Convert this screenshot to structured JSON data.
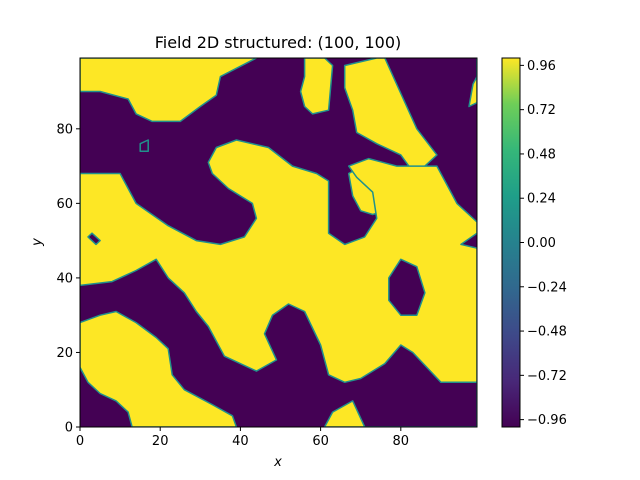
{
  "chart_data": {
    "type": "heatmap",
    "title": "Field 2D structured: (100, 100)",
    "xlabel": "x",
    "ylabel": "y",
    "xlim": [
      0,
      99
    ],
    "ylim": [
      0,
      99
    ],
    "x_ticks": [
      0,
      20,
      40,
      60,
      80
    ],
    "y_ticks": [
      0,
      20,
      40,
      60,
      80
    ],
    "x_tick_labels": [
      "0",
      "20",
      "40",
      "60",
      "80"
    ],
    "y_tick_labels": [
      "0",
      "20",
      "40",
      "60",
      "80"
    ],
    "colormap": "viridis",
    "clim": [
      -1.0,
      1.0
    ],
    "colorbar_ticks": [
      0.96,
      0.72,
      0.48,
      0.24,
      0.0,
      -0.24,
      -0.48,
      -0.72,
      -0.96
    ],
    "colorbar_tick_labels": [
      "0.96",
      "0.72",
      "0.48",
      "0.24",
      "0.00",
      "−0.24",
      "−0.48",
      "−0.72",
      "−0.96"
    ],
    "low_color": "#440154",
    "high_color": "#fde725",
    "edge_color": "#21918c",
    "regions_high_value_polygons": [
      [
        [
          0,
          99
        ],
        [
          44,
          99
        ],
        [
          35,
          94
        ],
        [
          34,
          89
        ],
        [
          30,
          86
        ],
        [
          25,
          82
        ],
        [
          18,
          82
        ],
        [
          14,
          84
        ],
        [
          12,
          88
        ],
        [
          5,
          90
        ],
        [
          0,
          90
        ]
      ],
      [
        [
          56,
          99
        ],
        [
          61,
          99
        ],
        [
          63,
          97
        ],
        [
          62,
          85
        ],
        [
          58,
          84
        ],
        [
          56,
          86
        ],
        [
          55,
          90
        ],
        [
          56,
          94
        ]
      ],
      [
        [
          74,
          99
        ],
        [
          76,
          99
        ],
        [
          84,
          80
        ],
        [
          89,
          73
        ],
        [
          86,
          70
        ],
        [
          78,
          68
        ],
        [
          72,
          71
        ],
        [
          67,
          68
        ],
        [
          68,
          62
        ],
        [
          70,
          58
        ],
        [
          73,
          57
        ],
        [
          76,
          58
        ],
        [
          79,
          61
        ],
        [
          81,
          66
        ],
        [
          82,
          70
        ],
        [
          80,
          73
        ],
        [
          74,
          76
        ],
        [
          69,
          79
        ],
        [
          68,
          85
        ],
        [
          66,
          91
        ],
        [
          66,
          97
        ]
      ],
      [
        [
          99,
          99
        ],
        [
          99,
          87
        ],
        [
          97,
          86
        ],
        [
          98,
          92
        ],
        [
          99,
          94
        ]
      ],
      [
        [
          99,
          99
        ],
        [
          99,
          94
        ],
        [
          99,
          99
        ]
      ],
      [
        [
          39,
          77
        ],
        [
          47,
          75
        ],
        [
          53,
          70
        ],
        [
          59,
          68
        ],
        [
          62,
          66
        ],
        [
          62,
          52
        ],
        [
          66,
          49
        ],
        [
          71,
          51
        ],
        [
          74,
          56
        ],
        [
          73,
          63
        ],
        [
          69,
          67
        ],
        [
          67,
          70
        ],
        [
          72,
          72
        ],
        [
          79,
          70
        ],
        [
          89,
          70
        ],
        [
          94,
          60
        ],
        [
          99,
          55
        ],
        [
          99,
          52
        ],
        [
          95,
          49
        ],
        [
          99,
          48
        ],
        [
          99,
          12
        ],
        [
          90,
          12
        ],
        [
          83,
          20
        ],
        [
          80,
          22
        ],
        [
          76,
          17
        ],
        [
          70,
          13
        ],
        [
          66,
          12
        ],
        [
          62,
          14
        ],
        [
          60,
          22
        ],
        [
          56,
          31
        ],
        [
          52,
          33
        ],
        [
          48,
          30
        ],
        [
          46,
          25
        ],
        [
          49,
          18
        ],
        [
          44,
          15
        ],
        [
          36,
          19
        ],
        [
          32,
          27
        ],
        [
          29,
          31
        ],
        [
          26,
          36
        ],
        [
          22,
          40
        ],
        [
          19,
          45
        ],
        [
          14,
          42
        ],
        [
          8,
          39
        ],
        [
          0,
          38
        ],
        [
          0,
          68
        ],
        [
          10,
          68
        ],
        [
          14,
          60
        ],
        [
          22,
          54
        ],
        [
          29,
          50
        ],
        [
          35,
          49
        ],
        [
          41,
          51
        ],
        [
          44,
          56
        ],
        [
          43,
          60
        ],
        [
          37,
          64
        ],
        [
          33,
          68
        ],
        [
          32,
          71
        ],
        [
          34,
          75
        ]
      ],
      [
        [
          99,
          12
        ],
        [
          99,
          0
        ],
        [
          61,
          0
        ],
        [
          63,
          4
        ],
        [
          68,
          7
        ],
        [
          71,
          0
        ],
        [
          99,
          0
        ]
      ],
      [
        [
          0,
          28
        ],
        [
          5,
          30
        ],
        [
          9,
          31
        ],
        [
          14,
          28
        ],
        [
          19,
          24
        ],
        [
          22,
          21
        ],
        [
          23,
          14
        ],
        [
          26,
          10
        ],
        [
          33,
          6
        ],
        [
          38,
          3
        ],
        [
          39,
          0
        ],
        [
          13,
          0
        ],
        [
          12,
          4
        ],
        [
          9,
          7
        ],
        [
          5,
          9
        ],
        [
          2,
          12
        ],
        [
          0,
          16
        ]
      ]
    ],
    "regions_low_value_polygons": [
      [
        [
          80,
          45
        ],
        [
          84,
          43
        ],
        [
          86,
          36
        ],
        [
          84,
          30
        ],
        [
          80,
          30
        ],
        [
          77,
          34
        ],
        [
          77,
          40
        ]
      ],
      [
        [
          3,
          52
        ],
        [
          5,
          50
        ],
        [
          4,
          49
        ],
        [
          2,
          51
        ]
      ],
      [
        [
          15,
          76
        ],
        [
          17,
          77
        ],
        [
          17,
          74
        ],
        [
          15,
          74
        ]
      ]
    ]
  }
}
